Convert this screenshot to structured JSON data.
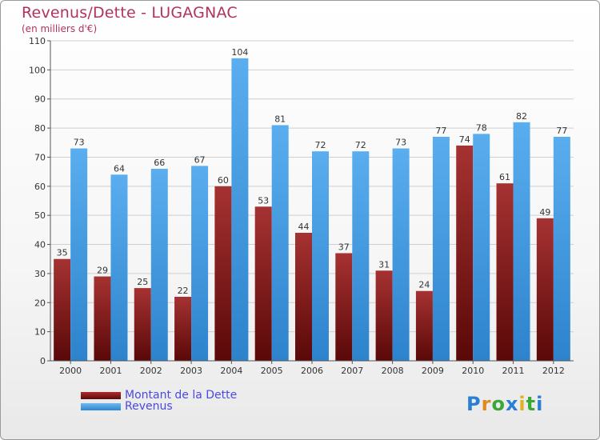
{
  "title": "Revenus/Dette - LUGAGNAC",
  "subtitle": "(en milliers d'€)",
  "logo": {
    "letters": [
      "P",
      "r",
      "o",
      "x",
      "i",
      "t",
      "i"
    ],
    "colors": [
      "#2a7fd4",
      "#e08a1e",
      "#3aa836",
      "#2a7fd4",
      "#e0b21e",
      "#3aa836",
      "#2a7fd4"
    ]
  },
  "colors": {
    "dette": "#8b1a1a",
    "revenus": "#3f9ee6",
    "axis_text": "#333333",
    "grid": "#cfcfcf"
  },
  "chart_data": {
    "type": "bar",
    "categories": [
      "2000",
      "2001",
      "2002",
      "2003",
      "2004",
      "2005",
      "2006",
      "2007",
      "2008",
      "2009",
      "2010",
      "2011",
      "2012"
    ],
    "series": [
      {
        "name": "Montant de la Dette",
        "values": [
          35,
          29,
          25,
          22,
          60,
          53,
          44,
          37,
          31,
          24,
          74,
          61,
          49
        ]
      },
      {
        "name": "Revenus",
        "values": [
          73,
          64,
          66,
          67,
          104,
          81,
          72,
          72,
          73,
          77,
          78,
          82,
          77
        ]
      }
    ],
    "yticks": [
      0,
      10,
      20,
      30,
      40,
      50,
      60,
      70,
      80,
      90,
      100,
      110
    ],
    "ylim": [
      0,
      110
    ],
    "grid": true,
    "legend_position": "bottom-left"
  }
}
